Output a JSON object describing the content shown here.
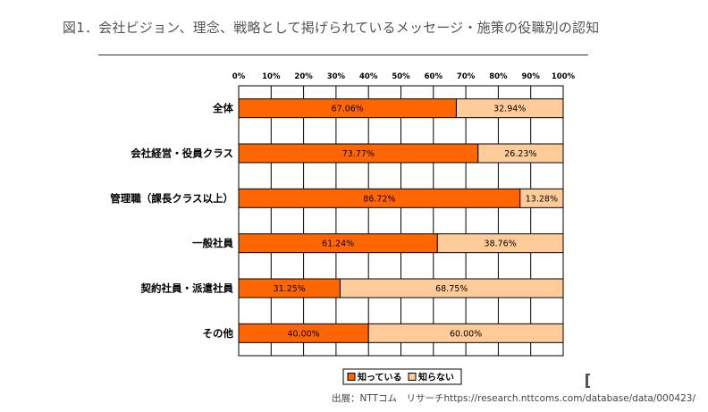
{
  "page": {
    "title": "図1．会社ビジョン、理念、戦略として掲げられているメッセージ・施策の役職別の認知",
    "source": "出展：NTTコム　リサーチhttps://research.nttcoms.com/database/data/000423/"
  },
  "chart_data": {
    "type": "bar",
    "orientation": "horizontal",
    "stacked": true,
    "title": "",
    "xlabel": "",
    "ylabel": "",
    "xlim": [
      0,
      100
    ],
    "x_ticks": [
      "0%",
      "10%",
      "20%",
      "30%",
      "40%",
      "50%",
      "60%",
      "70%",
      "80%",
      "90%",
      "100%"
    ],
    "grid": true,
    "legend_position": "bottom",
    "categories": [
      "全体",
      "会社経営・役員クラス",
      "管理職（課長クラス以上）",
      "一般社員",
      "契約社員・派遣社員",
      "その他"
    ],
    "series": [
      {
        "name": "知っている",
        "color": "#ff6600",
        "values": [
          67.06,
          73.77,
          86.72,
          61.24,
          31.25,
          40.0
        ],
        "labels": [
          "67.06%",
          "73.77%",
          "86.72%",
          "61.24%",
          "31.25%",
          "40.00%"
        ]
      },
      {
        "name": "知らない",
        "color": "#ffcc99",
        "values": [
          32.94,
          26.23,
          13.28,
          38.76,
          68.75,
          60.0
        ],
        "labels": [
          "32.94%",
          "26.23%",
          "13.28%",
          "38.76%",
          "68.75%",
          "60.00%"
        ]
      }
    ]
  }
}
